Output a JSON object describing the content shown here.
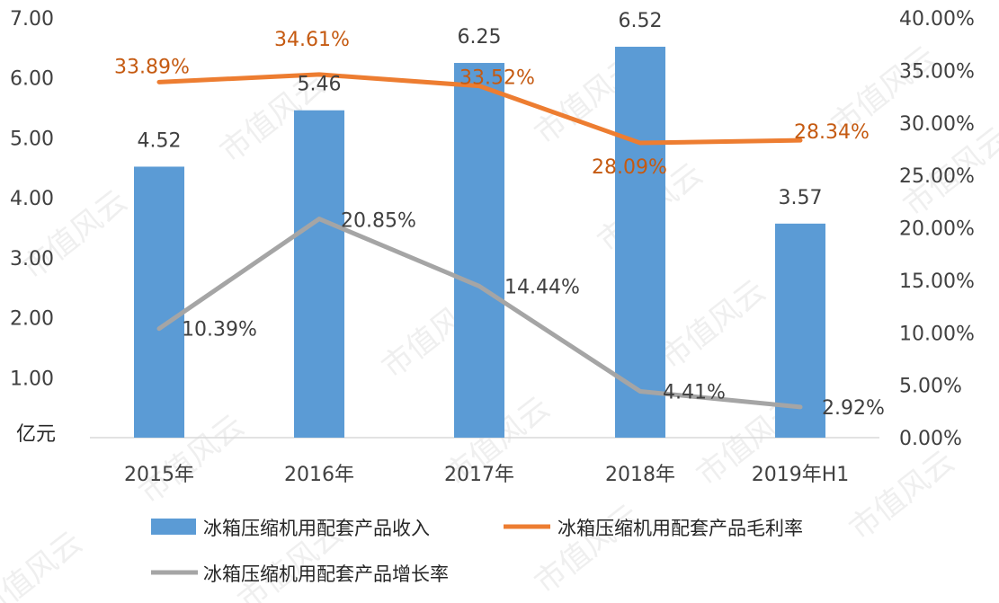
{
  "chart_data": {
    "type": "bar",
    "categories": [
      "2015年",
      "2016年",
      "2017年",
      "2018年",
      "2019年H1"
    ],
    "series": [
      {
        "name": "冰箱压缩机用配套产品收入",
        "type": "bar",
        "axis": "left",
        "color": "#5b9bd5",
        "values": [
          4.52,
          5.46,
          6.25,
          6.52,
          3.57
        ],
        "labels": [
          "4.52",
          "5.46",
          "6.25",
          "6.52",
          "3.57"
        ]
      },
      {
        "name": "冰箱压缩机用配套产品毛利率",
        "type": "line",
        "axis": "right",
        "color": "#ed7d31",
        "values": [
          33.89,
          34.61,
          33.52,
          28.09,
          28.34
        ],
        "labels": [
          "33.89%",
          "34.61%",
          "33.52%",
          "28.09%",
          "28.34%"
        ]
      },
      {
        "name": "冰箱压缩机用配套产品增长率",
        "type": "line",
        "axis": "right",
        "color": "#a5a5a5",
        "values": [
          10.39,
          20.85,
          14.44,
          4.41,
          2.92
        ],
        "labels": [
          "10.39%",
          "20.85%",
          "14.44%",
          "4.41%",
          "2.92%"
        ]
      }
    ],
    "y_left": {
      "unit": "亿元",
      "ylim": [
        0,
        7
      ],
      "ticks": [
        "1.00",
        "2.00",
        "3.00",
        "4.00",
        "5.00",
        "6.00",
        "7.00"
      ]
    },
    "y_right": {
      "ylim": [
        0,
        40
      ],
      "ticks": [
        "0.00%",
        "5.00%",
        "10.00%",
        "15.00%",
        "20.00%",
        "25.00%",
        "30.00%",
        "35.00%",
        "40.00%"
      ]
    },
    "grid": false,
    "legend": "bottom"
  },
  "watermark": "市值风云"
}
